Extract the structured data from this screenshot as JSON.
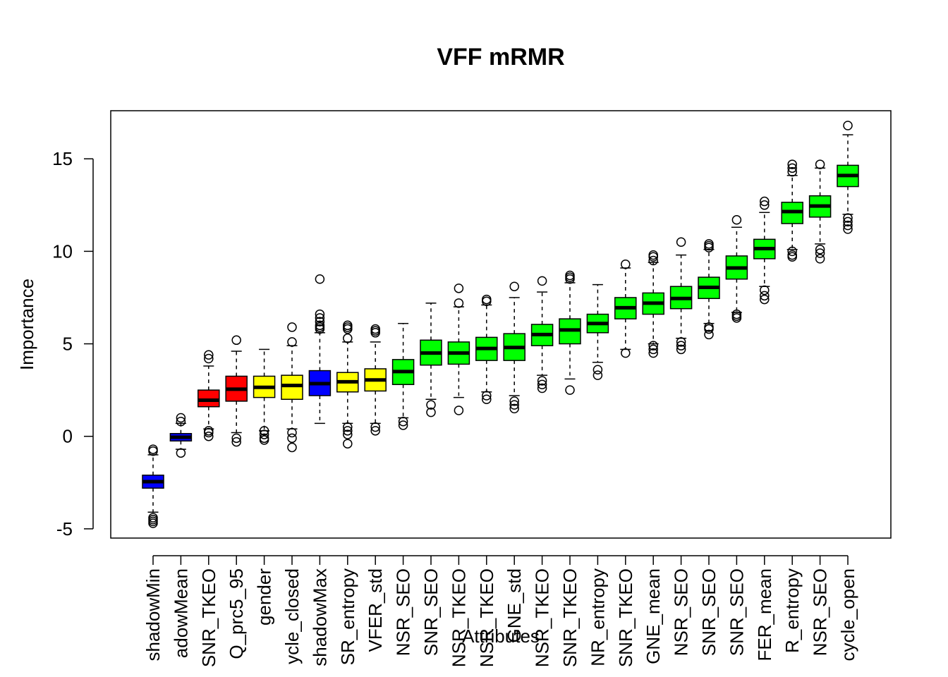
{
  "chart_data": {
    "type": "boxplot",
    "title": "VFF mRMR",
    "xlabel": "Attributes",
    "ylabel": "Importance",
    "ylim": [
      -5.5,
      17.6
    ],
    "yticks": [
      -5,
      0,
      5,
      10,
      15
    ],
    "ytick_labels": [
      "-5",
      "0",
      "5",
      "10",
      "15"
    ],
    "colors": {
      "shadow": "#0000ff",
      "rejected": "#ff0000",
      "tentative": "#ffff00",
      "confirmed": "#00ff00"
    },
    "categories": [
      {
        "label": "shadowMin",
        "status": "shadow",
        "min": -4.1,
        "q1": -2.8,
        "median": -2.45,
        "q3": -2.1,
        "max": -1.0,
        "outliers": [
          -4.4,
          -4.5,
          -4.6,
          -4.7,
          -0.7,
          -0.8
        ]
      },
      {
        "label": "adowMean",
        "status": "shadow",
        "min": -0.7,
        "q1": -0.25,
        "median": -0.05,
        "q3": 0.15,
        "max": 0.7,
        "outliers": [
          0.8,
          1.0,
          -0.9
        ]
      },
      {
        "label": "SNR_TKEO",
        "status": "rejected",
        "min": 0.4,
        "q1": 1.6,
        "median": 1.95,
        "q3": 2.5,
        "max": 3.8,
        "outliers": [
          4.2,
          4.4,
          0.3,
          0.2,
          0.0
        ]
      },
      {
        "label": "Q_prc5_95",
        "status": "rejected",
        "min": 0.2,
        "q1": 1.9,
        "median": 2.55,
        "q3": 3.25,
        "max": 4.6,
        "outliers": [
          5.2,
          -0.1,
          -0.3
        ]
      },
      {
        "label": "gender",
        "status": "tentative",
        "min": 0.3,
        "q1": 2.1,
        "median": 2.65,
        "q3": 3.25,
        "max": 4.7,
        "outliers": [
          0.3,
          0.1,
          -0.1,
          -0.2
        ]
      },
      {
        "label": "ycle_closed",
        "status": "tentative",
        "min": 0.4,
        "q1": 2.0,
        "median": 2.75,
        "q3": 3.3,
        "max": 4.9,
        "outliers": [
          5.1,
          5.9,
          0.2,
          -0.1,
          -0.6
        ]
      },
      {
        "label": "shadowMax",
        "status": "shadow",
        "min": 0.7,
        "q1": 2.2,
        "median": 2.85,
        "q3": 3.55,
        "max": 5.6,
        "outliers": [
          5.8,
          5.9,
          6.0,
          6.2,
          6.4,
          6.6,
          8.5
        ]
      },
      {
        "label": "SR_entropy",
        "status": "tentative",
        "min": 0.7,
        "q1": 2.4,
        "median": 2.95,
        "q3": 3.45,
        "max": 5.1,
        "outliers": [
          5.3,
          5.8,
          5.9,
          6.0,
          0.5,
          0.3,
          0.1,
          -0.4
        ]
      },
      {
        "label": "VFER_std",
        "status": "tentative",
        "min": 0.7,
        "q1": 2.45,
        "median": 3.05,
        "q3": 3.65,
        "max": 5.1,
        "outliers": [
          5.6,
          5.7,
          5.8,
          0.5,
          0.3
        ]
      },
      {
        "label": "NSR_SEO",
        "status": "confirmed",
        "min": 1.0,
        "q1": 2.8,
        "median": 3.5,
        "q3": 4.15,
        "max": 6.1,
        "outliers": [
          0.8,
          0.6
        ]
      },
      {
        "label": "SNR_SEO",
        "status": "confirmed",
        "min": 2.0,
        "q1": 3.85,
        "median": 4.5,
        "q3": 5.2,
        "max": 7.2,
        "outliers": [
          1.7,
          1.3
        ]
      },
      {
        "label": "NSR_TKEO",
        "status": "confirmed",
        "min": 2.1,
        "q1": 3.9,
        "median": 4.5,
        "q3": 5.1,
        "max": 7.0,
        "outliers": [
          7.2,
          8.0,
          1.4
        ]
      },
      {
        "label": "NSR_TKEO",
        "status": "confirmed",
        "min": 2.4,
        "q1": 4.1,
        "median": 4.75,
        "q3": 5.35,
        "max": 7.1,
        "outliers": [
          7.3,
          7.4,
          2.2,
          2.0
        ]
      },
      {
        "label": "GNE_std",
        "status": "confirmed",
        "min": 2.2,
        "q1": 4.1,
        "median": 4.8,
        "q3": 5.55,
        "max": 7.5,
        "outliers": [
          8.1,
          1.9,
          1.7,
          1.5
        ]
      },
      {
        "label": "NSR_TKEO",
        "status": "confirmed",
        "min": 3.3,
        "q1": 4.9,
        "median": 5.5,
        "q3": 6.05,
        "max": 7.8,
        "outliers": [
          8.4,
          3.0,
          2.8,
          2.6
        ]
      },
      {
        "label": "SNR_TKEO",
        "status": "confirmed",
        "min": 3.1,
        "q1": 5.0,
        "median": 5.75,
        "q3": 6.35,
        "max": 8.3,
        "outliers": [
          8.5,
          8.6,
          8.7,
          2.5
        ]
      },
      {
        "label": "NR_entropy",
        "status": "confirmed",
        "min": 4.0,
        "q1": 5.6,
        "median": 6.1,
        "q3": 6.6,
        "max": 8.2,
        "outliers": [
          3.6,
          3.3
        ]
      },
      {
        "label": "SNR_TKEO",
        "status": "confirmed",
        "min": 4.7,
        "q1": 6.35,
        "median": 6.95,
        "q3": 7.5,
        "max": 9.1,
        "outliers": [
          9.3,
          4.5
        ]
      },
      {
        "label": "GNE_mean",
        "status": "confirmed",
        "min": 5.0,
        "q1": 6.6,
        "median": 7.2,
        "q3": 7.75,
        "max": 9.4,
        "outliers": [
          9.5,
          9.7,
          9.8,
          4.9,
          4.7,
          4.5
        ]
      },
      {
        "label": "NSR_SEO",
        "status": "confirmed",
        "min": 5.3,
        "q1": 6.9,
        "median": 7.45,
        "q3": 8.1,
        "max": 9.8,
        "outliers": [
          10.5,
          5.1,
          4.9,
          4.7
        ]
      },
      {
        "label": "SNR_SEO",
        "status": "confirmed",
        "min": 6.1,
        "q1": 7.45,
        "median": 8.05,
        "q3": 8.6,
        "max": 10.1,
        "outliers": [
          10.2,
          10.3,
          10.4,
          5.9,
          5.8,
          5.5
        ]
      },
      {
        "label": "SNR_SEO",
        "status": "confirmed",
        "min": 6.7,
        "q1": 8.5,
        "median": 9.1,
        "q3": 9.75,
        "max": 11.3,
        "outliers": [
          11.7,
          6.6,
          6.5,
          6.4
        ]
      },
      {
        "label": "FER_mean",
        "status": "confirmed",
        "min": 8.1,
        "q1": 9.6,
        "median": 10.15,
        "q3": 10.65,
        "max": 12.1,
        "outliers": [
          12.5,
          12.7,
          7.9,
          7.6,
          7.4
        ]
      },
      {
        "label": "R_entropy",
        "status": "confirmed",
        "min": 10.1,
        "q1": 11.5,
        "median": 12.15,
        "q3": 12.65,
        "max": 14.1,
        "outliers": [
          14.3,
          14.5,
          14.7,
          10.0,
          9.8,
          9.7
        ]
      },
      {
        "label": "NSR_SEO",
        "status": "confirmed",
        "min": 10.4,
        "q1": 11.85,
        "median": 12.45,
        "q3": 13.0,
        "max": 14.5,
        "outliers": [
          14.7,
          10.1,
          9.9,
          9.6
        ]
      },
      {
        "label": "cycle_open",
        "status": "confirmed",
        "min": 12.0,
        "q1": 13.5,
        "median": 14.1,
        "q3": 14.65,
        "max": 16.3,
        "outliers": [
          16.8,
          11.8,
          11.6,
          11.4,
          11.2
        ]
      }
    ]
  }
}
